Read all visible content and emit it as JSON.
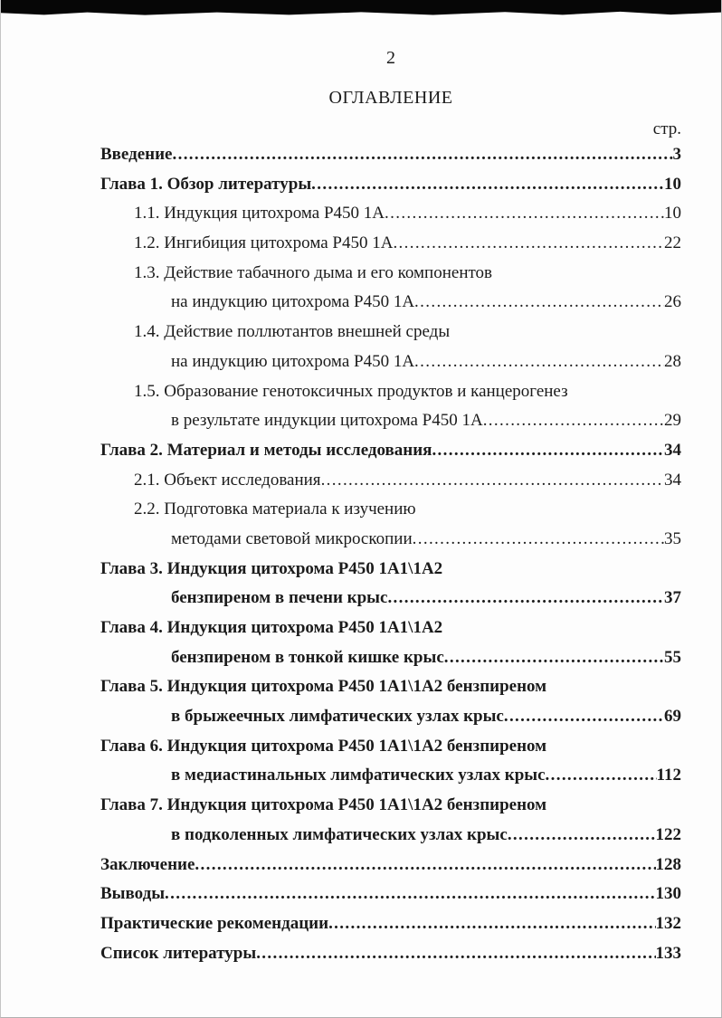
{
  "page": {
    "number": "2",
    "title": "ОГЛАВЛЕНИЕ",
    "page_col_label": "стр."
  },
  "colors": {
    "ink": "#1b1b1b",
    "paper": "#fdfdfd",
    "scan_band": "#060606"
  },
  "toc": {
    "rows": [
      {
        "text": "Введение",
        "indent": 0,
        "bold": true,
        "page": "3"
      },
      {
        "text": "Глава 1. Обзор литературы",
        "indent": 0,
        "bold": true,
        "page": "10"
      },
      {
        "text": "1.1. Индукция цитохрома P450 1A",
        "indent": 1,
        "bold": false,
        "page": "10"
      },
      {
        "text": "1.2. Ингибиция цитохрома P450 1A",
        "indent": 1,
        "bold": false,
        "page": "22"
      },
      {
        "text": "1.3. Действие табачного дыма и его компонентов",
        "indent": 1,
        "bold": false,
        "page": null
      },
      {
        "text": "на индукцию цитохрома P450 1A",
        "indent": 2,
        "bold": false,
        "page": "26"
      },
      {
        "text": "1.4. Действие поллютантов внешней среды",
        "indent": 1,
        "bold": false,
        "page": null
      },
      {
        "text": "на индукцию цитохрома P450 1A",
        "indent": 2,
        "bold": false,
        "page": "28"
      },
      {
        "text": "1.5. Образование генотоксичных продуктов и канцерогенез",
        "indent": 1,
        "bold": false,
        "page": null
      },
      {
        "text": "в результате индукции цитохрома P450 1A",
        "indent": 2,
        "bold": false,
        "page": "29"
      },
      {
        "text": "Глава 2. Материал и методы исследования",
        "indent": 0,
        "bold": true,
        "page": "34"
      },
      {
        "text": "2.1. Объект исследования",
        "indent": 1,
        "bold": false,
        "page": "34"
      },
      {
        "text": "2.2. Подготовка материала к изучению",
        "indent": 1,
        "bold": false,
        "page": null
      },
      {
        "text": "методами световой микроскопии",
        "indent": 2,
        "bold": false,
        "page": "35"
      },
      {
        "text": "Глава 3. Индукция цитохрома P450 1A1\\1A2",
        "indent": 0,
        "bold": true,
        "page": null
      },
      {
        "text": "бензпиреном в печени крыс",
        "indent": 2,
        "bold": true,
        "page": "37"
      },
      {
        "text": "Глава 4. Индукция цитохрома P450 1A1\\1A2",
        "indent": 0,
        "bold": true,
        "page": null
      },
      {
        "text": "бензпиреном в тонкой кишке крыс",
        "indent": 2,
        "bold": true,
        "page": "55"
      },
      {
        "text": "Глава 5. Индукция цитохрома P450 1A1\\1A2 бензпиреном",
        "indent": 0,
        "bold": true,
        "page": null
      },
      {
        "text": "в брыжеечных лимфатических узлах крыс",
        "indent": 2,
        "bold": true,
        "page": "69"
      },
      {
        "text": "Глава 6. Индукция цитохрома P450 1A1\\1A2 бензпиреном",
        "indent": 0,
        "bold": true,
        "page": null
      },
      {
        "text": "в медиастинальных лимфатических узлах крыс",
        "indent": 2,
        "bold": true,
        "page": "112"
      },
      {
        "text": "Глава 7. Индукция цитохрома P450 1A1\\1A2 бензпиреном",
        "indent": 0,
        "bold": true,
        "page": null
      },
      {
        "text": "в подколенных лимфатических узлах крыс",
        "indent": 2,
        "bold": true,
        "page": "122"
      },
      {
        "text": "Заключение",
        "indent": 0,
        "bold": true,
        "page": "128"
      },
      {
        "text": "Выводы",
        "indent": 0,
        "bold": true,
        "page": "130"
      },
      {
        "text": "Практические рекомендации",
        "indent": 0,
        "bold": true,
        "page": "132"
      },
      {
        "text": "Список литературы",
        "indent": 0,
        "bold": true,
        "page": "133"
      }
    ]
  }
}
